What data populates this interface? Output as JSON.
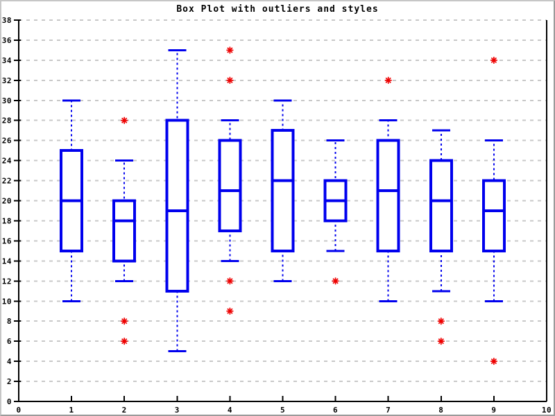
{
  "chart_data": {
    "type": "boxplot",
    "title": "Box Plot with outliers and styles",
    "xlabel": "",
    "ylabel": "",
    "xlim": [
      0,
      10
    ],
    "ylim": [
      0,
      38
    ],
    "x_ticks": [
      0,
      1,
      2,
      3,
      4,
      5,
      6,
      7,
      8,
      9,
      10
    ],
    "y_ticks": [
      0,
      2,
      4,
      6,
      8,
      10,
      12,
      14,
      16,
      18,
      20,
      22,
      24,
      26,
      28,
      30,
      32,
      34,
      36,
      38
    ],
    "grid": "horizontal-dashed",
    "legend": "none",
    "colors": {
      "box": "#0000ee",
      "outlier": "#ee0000",
      "grid": "#c8c8c8",
      "axis": "#000000",
      "background": "#ffffff"
    },
    "series": [
      {
        "x": 1,
        "whisker_low": 10,
        "q1": 15,
        "median": 20,
        "q3": 25,
        "whisker_high": 30,
        "outliers": []
      },
      {
        "x": 2,
        "whisker_low": 12,
        "q1": 14,
        "median": 18,
        "q3": 20,
        "whisker_high": 24,
        "outliers": [
          28,
          8,
          6
        ]
      },
      {
        "x": 3,
        "whisker_low": 5,
        "q1": 11,
        "median": 19,
        "q3": 28,
        "whisker_high": 35,
        "outliers": []
      },
      {
        "x": 4,
        "whisker_low": 14,
        "q1": 17,
        "median": 21,
        "q3": 26,
        "whisker_high": 28,
        "outliers": [
          35,
          32,
          12,
          9
        ]
      },
      {
        "x": 5,
        "whisker_low": 12,
        "q1": 15,
        "median": 22,
        "q3": 27,
        "whisker_high": 30,
        "outliers": []
      },
      {
        "x": 6,
        "whisker_low": 15,
        "q1": 18,
        "median": 20,
        "q3": 22,
        "whisker_high": 26,
        "outliers": [
          12
        ]
      },
      {
        "x": 7,
        "whisker_low": 10,
        "q1": 15,
        "median": 21,
        "q3": 26,
        "whisker_high": 28,
        "outliers": [
          32
        ]
      },
      {
        "x": 8,
        "whisker_low": 11,
        "q1": 15,
        "median": 20,
        "q3": 24,
        "whisker_high": 27,
        "outliers": [
          8,
          6
        ]
      },
      {
        "x": 9,
        "whisker_low": 10,
        "q1": 15,
        "median": 19,
        "q3": 22,
        "whisker_high": 26,
        "outliers": [
          34,
          4
        ]
      }
    ]
  }
}
